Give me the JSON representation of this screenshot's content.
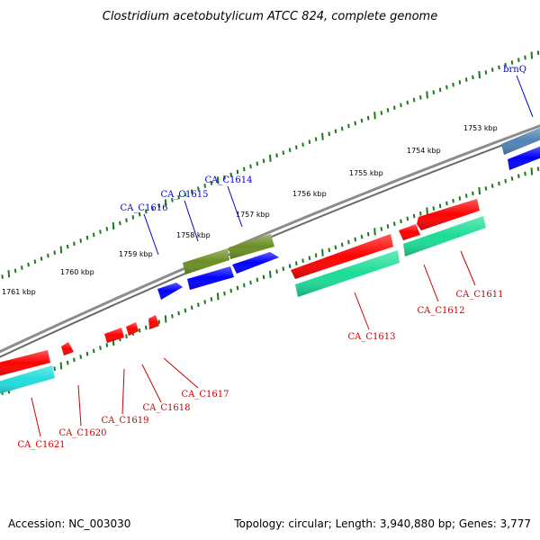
{
  "title": "Clostridium acetobutylicum ATCC 824, complete genome",
  "footer": {
    "accession": "Accession: NC_003030",
    "summary": "Topology: circular; Length: 3,940,880 bp; Genes: 3,777"
  },
  "colors": {
    "backbone": "#808080",
    "tick": "#1a7a1a",
    "label_forward": "#0000cc",
    "label_reverse": "#cc0000"
  },
  "tick_labels": [
    "1753 kbp",
    "1754 kbp",
    "1755 kbp",
    "1756 kbp",
    "1757 kbp",
    "1758 kbp",
    "1759 kbp",
    "1760 kbp",
    "1761 kbp"
  ],
  "genes_forward": [
    {
      "name": "brnQ",
      "color": "#4f82b4"
    },
    {
      "name": "CA_C1614",
      "color": "#6b8e23"
    },
    {
      "name": "CA_C1615",
      "color": "#0000ff"
    },
    {
      "name": "CA_C1616",
      "color": "#0000ff"
    }
  ],
  "genes_reverse": [
    {
      "name": "CA_C1611",
      "color": "#ff0000"
    },
    {
      "name": "CA_C1612",
      "color": "#ff0000"
    },
    {
      "name": "CA_C1613",
      "color": "#ff0000"
    },
    {
      "name": "CA_C1617",
      "color": "#ff0000"
    },
    {
      "name": "CA_C1618",
      "color": "#ff0000"
    },
    {
      "name": "CA_C1619",
      "color": "#ff0000"
    },
    {
      "name": "CA_C1620",
      "color": "#ff0000"
    },
    {
      "name": "CA_C1621",
      "color": "#ff0000"
    }
  ]
}
